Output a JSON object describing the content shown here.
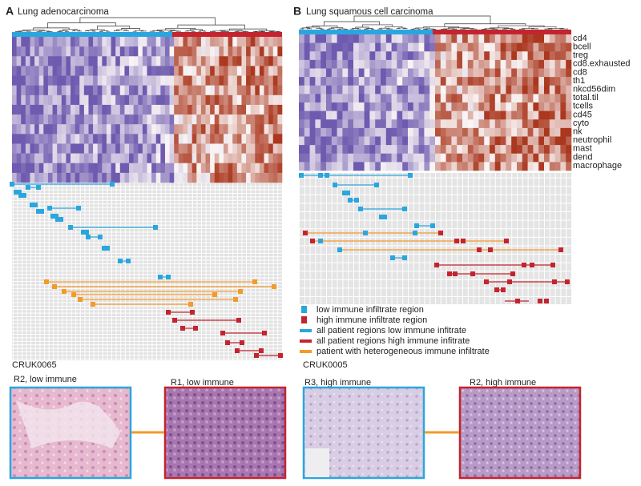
{
  "panel_a": {
    "label": "A",
    "title": "Lung adenocarcinoma"
  },
  "panel_b": {
    "label": "B",
    "title": "Lung squamous cell carcinoma",
    "row_labels": [
      "cd4",
      "bcell",
      "treg",
      "cd8.exhausted",
      "cd8",
      "th1",
      "nkcd56dim",
      "total.til",
      "tcells",
      "cd45",
      "cyto",
      "nk",
      "neutrophil",
      "mast",
      "dend",
      "macrophage"
    ]
  },
  "legend": [
    "low immune infiltrate region",
    "high immune infiltrate region",
    "all patient regions low immune infitrate",
    "all patient regions high immune infitrate",
    "patient with heterogeneous immune infiltrate"
  ],
  "examples": [
    {
      "patient": "CRUK0065",
      "images": [
        {
          "caption": "R2, low immune"
        },
        {
          "caption": "R1, low immune"
        }
      ]
    },
    {
      "patient": "CRUK0005",
      "images": [
        {
          "caption": "R3, high immune"
        },
        {
          "caption": "R2, high immune"
        }
      ]
    }
  ]
}
